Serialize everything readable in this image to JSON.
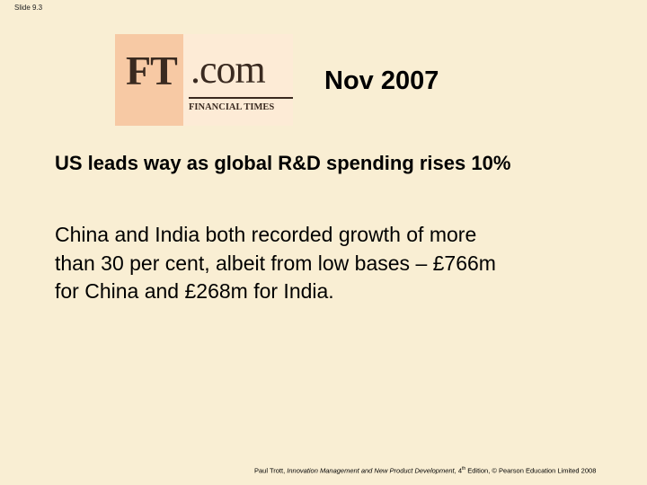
{
  "slide_number": "Slide 9.3",
  "logo": {
    "mark": "FT",
    "suffix": ".com",
    "caption": "FINANCIAL TIMES"
  },
  "date": "Nov 2007",
  "headline": "US leads way as global R&D spending rises 10%",
  "body": {
    "lines": [
      "China and India both recorded growth of more",
      "than 30 per cent, albeit from low bases – £766m",
      "for China and £268m for India."
    ]
  },
  "footer": {
    "author": "Paul Trott, ",
    "book": "Innovation Management and New Product Development",
    "edition_pre": ", 4",
    "edition_sup": "th",
    "rest": " Edition, © Pearson Education Limited 2008"
  }
}
